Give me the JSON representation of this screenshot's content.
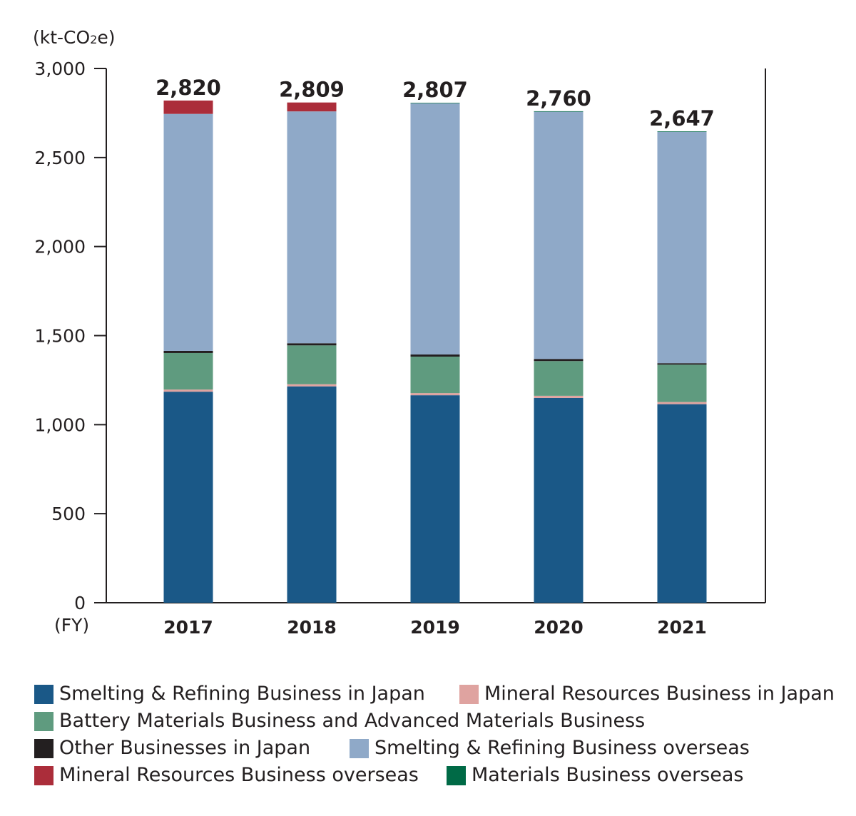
{
  "chart_data": {
    "type": "bar",
    "stacked": true,
    "unit_label": {
      "main": "(kt-CO",
      "sub": "2",
      "tail": "e)"
    },
    "xlabel": "(FY)",
    "categories": [
      "2017",
      "2018",
      "2019",
      "2020",
      "2021"
    ],
    "totals": [
      "2,820",
      "2,809",
      "2,807",
      "2,760",
      "2,647"
    ],
    "ylim": [
      0,
      3000
    ],
    "yticks": [
      0,
      500,
      1000,
      1500,
      2000,
      2500,
      3000
    ],
    "ytick_labels": [
      "0",
      "500",
      "1,000",
      "1,500",
      "2,000",
      "2,500",
      "3,000"
    ],
    "grid": false,
    "series": [
      {
        "name": "Smelting & Refining Business in Japan",
        "color": "#1a5887",
        "values": [
          1185,
          1215,
          1165,
          1150,
          1115
        ]
      },
      {
        "name": "Mineral Resources Business in Japan",
        "color": "#dfa3a0",
        "values": [
          12,
          12,
          12,
          12,
          12
        ]
      },
      {
        "name": "Battery Materials Business and Advanced Materials Business",
        "color": "#5f9b7f",
        "values": [
          205,
          218,
          205,
          195,
          210
        ]
      },
      {
        "name": "Other Businesses in Japan",
        "color": "#231f20",
        "values": [
          12,
          12,
          12,
          12,
          8
        ]
      },
      {
        "name": "Smelting & Refining Business overseas",
        "color": "#8fa9c8",
        "values": [
          1331,
          1302,
          1410,
          1388,
          1299
        ]
      },
      {
        "name": "Mineral Resources Business overseas",
        "color": "#ab2d3a",
        "values": [
          75,
          50,
          0,
          0,
          0
        ]
      },
      {
        "name": "Materials Business overseas",
        "color": "#006a46",
        "values": [
          0,
          0,
          3,
          3,
          3
        ]
      }
    ]
  }
}
